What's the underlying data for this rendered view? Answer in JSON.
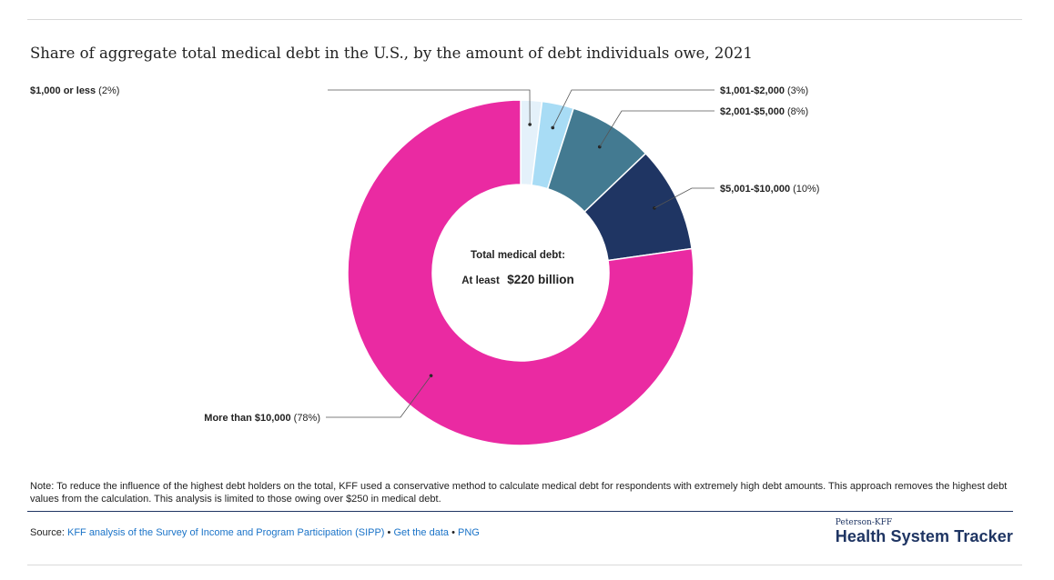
{
  "title": "Share of aggregate total medical debt in the U.S., by the amount of debt individuals owe, 2021",
  "center": {
    "line1": "Total medical debt:",
    "prefix": "At least",
    "amount": "$220 billion"
  },
  "chart_data": {
    "type": "pie",
    "donut": true,
    "title": "Share of aggregate total medical debt in the U.S., by the amount of debt individuals owe, 2021",
    "slices": [
      {
        "name": "$1,000 or less",
        "value": 2,
        "value_label": "(2%)",
        "color": "#e4f1fa"
      },
      {
        "name": "$1,001-$2,000",
        "value": 3,
        "value_label": "(3%)",
        "color": "#a8dcf5"
      },
      {
        "name": "$2,001-$5,000",
        "value": 8,
        "value_label": "(8%)",
        "color": "#437a91"
      },
      {
        "name": "$5,001-$10,000",
        "value": 10,
        "value_label": "(10%)",
        "color": "#1f3563"
      },
      {
        "name": "More than $10,000",
        "value": 78,
        "value_label": "(78%)",
        "color": "#ea2aa2"
      }
    ]
  },
  "note": "Note: To reduce the influence of the highest debt holders on the total, KFF used a conservative method to calculate medical debt for respondents with extremely high debt amounts. This approach removes the highest debt values from the calculation. This analysis is limited to those owing over $250 in medical debt.",
  "source": {
    "label": "Source:",
    "link1": "KFF analysis of the Survey of Income and Program Participation (SIPP)",
    "sep1": "•",
    "link2": "Get the data",
    "sep2": "•",
    "link3": "PNG"
  },
  "logo": {
    "small": "Peterson-KFF",
    "big": "Health System Tracker"
  }
}
